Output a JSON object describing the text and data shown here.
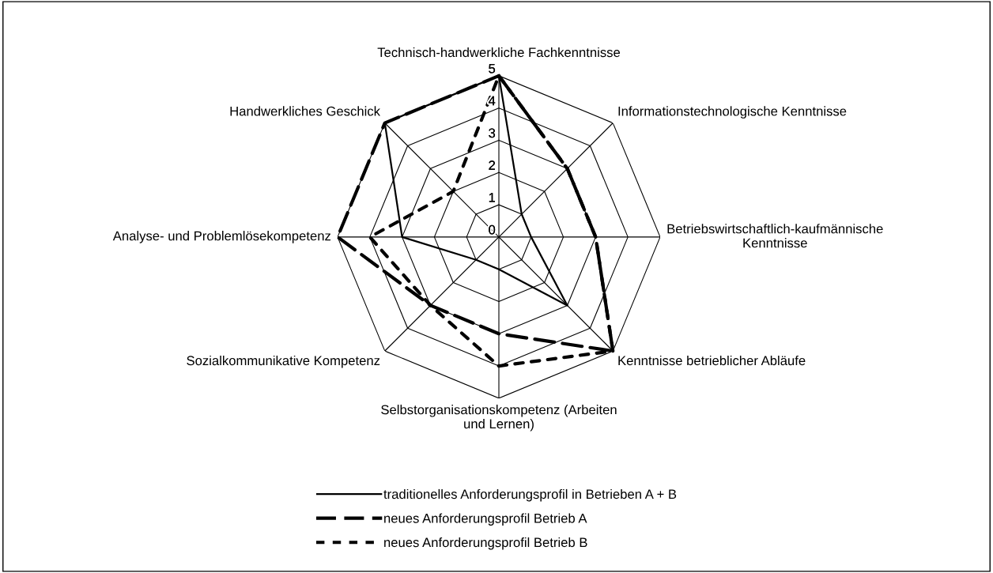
{
  "chart_data": {
    "type": "radar",
    "categories": [
      "Technisch-handwerkliche Fachkenntnisse",
      "Informationstechnologische Kenntnisse",
      "Betriebswirtschaftlich-kaufmännische Kenntnisse",
      "Kenntnisse betrieblicher Abläufe",
      "Selbstorganisationskompetenz (Arbeiten und Lernen)",
      "Sozialkommunikative Kompetenz",
      "Analyse- und Problemlösekompetenz",
      "Handwerkliches Geschick"
    ],
    "series": [
      {
        "name": "traditionelles Anforderungsprofil in Betrieben A + B",
        "color": "#000000",
        "line_style": "solid",
        "values": [
          5,
          1,
          1,
          3,
          1,
          1,
          3,
          5
        ]
      },
      {
        "name": "neues Anforderungsprofil Betrieb A",
        "color": "#000000",
        "line_style": "dashed",
        "values": [
          5,
          3,
          3,
          5,
          3,
          3,
          5,
          5
        ]
      },
      {
        "name": "neues Anforderungsprofil Betrieb B",
        "color": "#000000",
        "line_style": "dotted",
        "values": [
          5,
          3,
          3,
          5,
          4,
          3,
          4,
          2
        ]
      }
    ],
    "ylim": [
      0,
      5
    ],
    "yticks": [
      0,
      1,
      2,
      3,
      4,
      5
    ],
    "legend": "bottom",
    "marker": "none"
  }
}
